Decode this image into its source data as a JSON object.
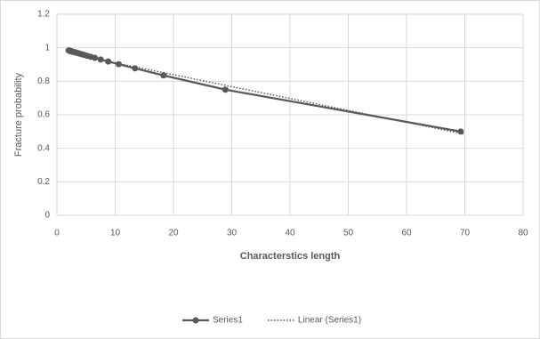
{
  "chart_data": {
    "type": "scatter",
    "x_label": "Characterstics length",
    "y_label": "Fracture probability",
    "series": [
      {
        "name": "Series1",
        "color": "#595959",
        "line": "solid",
        "markers": true,
        "x": [
          2.0,
          2.1,
          2.2,
          2.4,
          2.5,
          2.7,
          2.9,
          3.1,
          3.3,
          3.6,
          3.9,
          4.3,
          4.7,
          5.2,
          5.8,
          6.5,
          7.5,
          8.8,
          10.6,
          13.4,
          18.3,
          28.9,
          69.3
        ],
        "values": [
          0.984,
          0.983,
          0.982,
          0.98,
          0.979,
          0.977,
          0.975,
          0.973,
          0.971,
          0.968,
          0.965,
          0.961,
          0.957,
          0.952,
          0.946,
          0.94,
          0.93,
          0.918,
          0.902,
          0.877,
          0.835,
          0.75,
          0.5
        ]
      },
      {
        "name": "Linear (Series1)",
        "color": "#595959",
        "line": "dotted",
        "markers": false,
        "x": [
          2.0,
          70.0
        ],
        "values": [
          0.967,
          0.484
        ]
      }
    ],
    "xlim": [
      0,
      80
    ],
    "xticks": [
      0,
      10,
      20,
      30,
      40,
      50,
      60,
      70,
      80
    ],
    "ylim": [
      0,
      1.2
    ],
    "yticks": [
      0,
      0.2,
      0.4,
      0.6,
      0.8,
      1,
      1.2
    ],
    "grid": true,
    "legend": "bottom"
  }
}
